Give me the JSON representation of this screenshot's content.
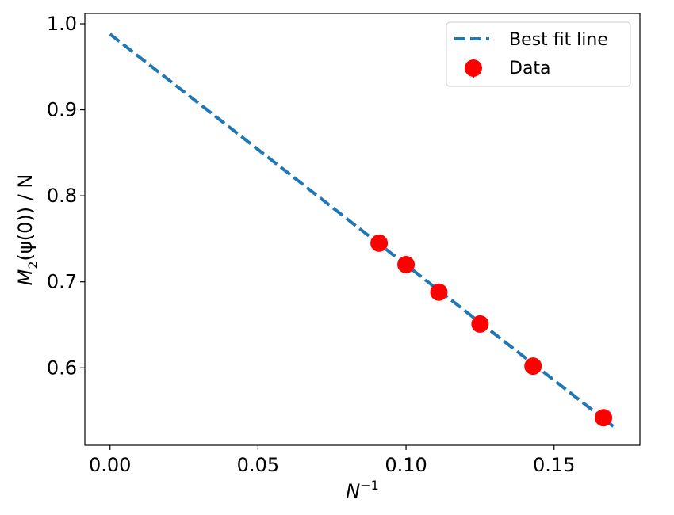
{
  "chart_data": {
    "type": "scatter",
    "xlabel": {
      "base": "N",
      "sup": "−1"
    },
    "ylabel": {
      "m": "M",
      "sub": "2",
      "rest": "(ψ(0)) / N"
    },
    "xlim": [
      -0.0085,
      0.179
    ],
    "ylim": [
      0.51,
      1.012
    ],
    "xticks": [
      0.0,
      0.05,
      0.1,
      0.15
    ],
    "xtick_labels": [
      "0.00",
      "0.05",
      "0.10",
      "0.15"
    ],
    "yticks": [
      0.6,
      0.7,
      0.8,
      0.9,
      1.0
    ],
    "ytick_labels": [
      "0.6",
      "0.7",
      "0.8",
      "0.9",
      "1.0"
    ],
    "grid": false,
    "legend_position": "top-right",
    "series": [
      {
        "name": "Best fit line",
        "kind": "line",
        "style": "dashed",
        "color": "#1f77b4",
        "x": [
          0.0,
          0.17
        ],
        "y": [
          0.988,
          0.532
        ]
      },
      {
        "name": "Data",
        "kind": "scatter",
        "color": "#ff0000",
        "x": [
          0.0909,
          0.1,
          0.1111,
          0.125,
          0.1429,
          0.1667
        ],
        "y": [
          0.745,
          0.72,
          0.688,
          0.651,
          0.602,
          0.542
        ]
      }
    ]
  }
}
